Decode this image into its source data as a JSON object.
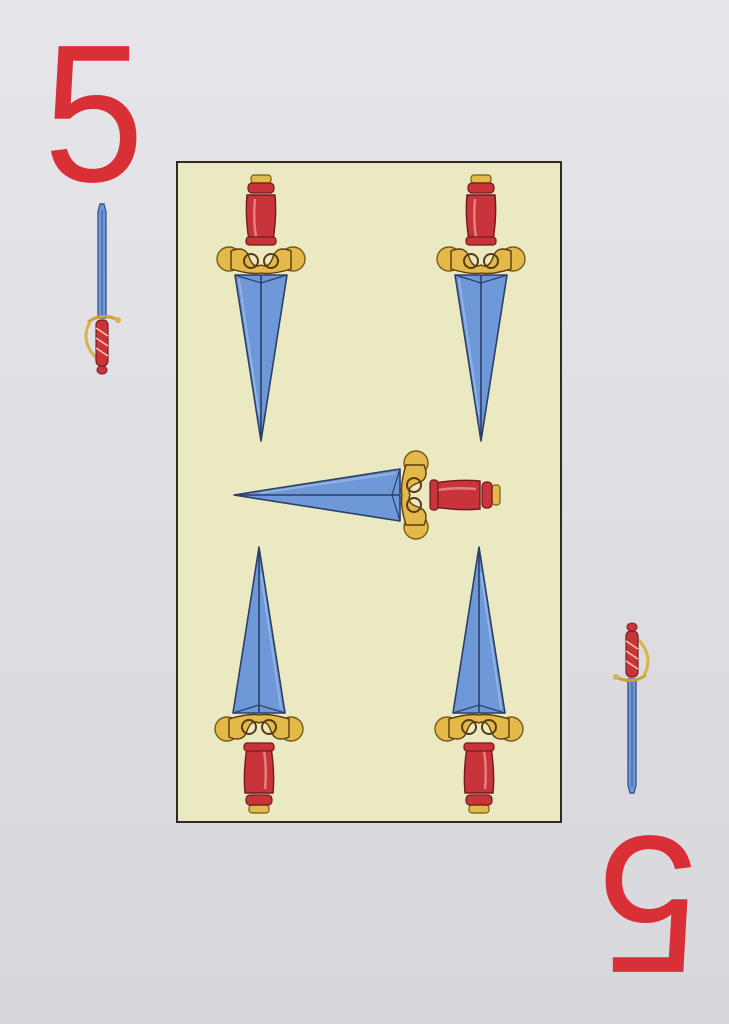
{
  "card": {
    "rank": "5",
    "suit": "espadas",
    "pip_count": 5,
    "colors": {
      "rank": "#d92f37",
      "card_background": "#e2e2e6",
      "panel_fill": "#eae9c2",
      "panel_border": "#2e2a24",
      "blade": "#6f98d8",
      "hilt": "#c9343a",
      "guard": "#e3b94a"
    },
    "icons": {
      "corner_suit": "sword-icon",
      "pip": "dagger-icon"
    }
  }
}
